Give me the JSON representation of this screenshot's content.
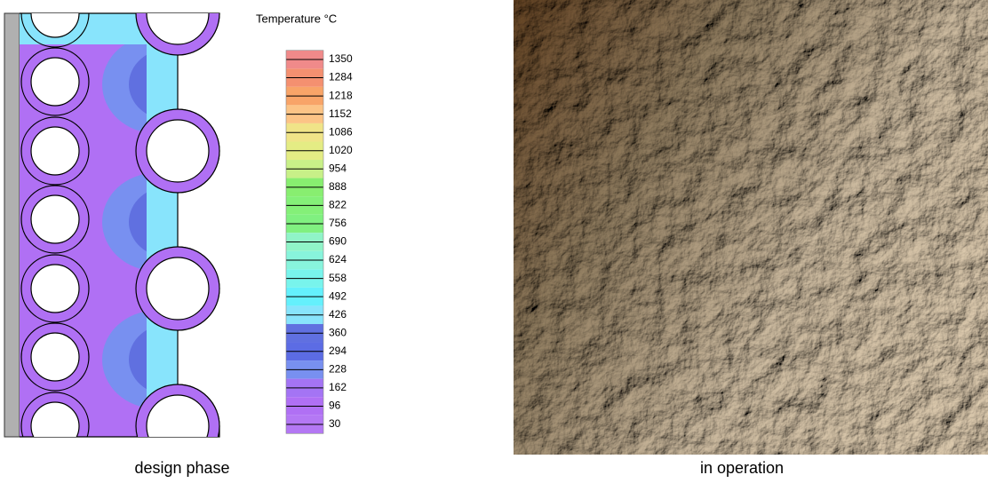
{
  "legend": {
    "title": "Temperature °C",
    "labels": [
      1350,
      1284,
      1218,
      1152,
      1086,
      1020,
      954,
      888,
      822,
      756,
      690,
      624,
      558,
      492,
      426,
      360,
      294,
      228,
      162,
      96,
      30
    ],
    "colors": [
      "#f08a8a",
      "#f49070",
      "#f8a468",
      "#fcc486",
      "#f0e488",
      "#e4ec84",
      "#c8f088",
      "#88ee70",
      "#84f078",
      "#80f080",
      "#90f4c8",
      "#88f4dc",
      "#78f4ec",
      "#64f0fc",
      "#88e4fc",
      "#6070e0",
      "#5c6ce4",
      "#7890f0",
      "#a474f4",
      "#b070f4",
      "#b478f4"
    ]
  },
  "captions": [
    "design phase",
    "in operation"
  ]
}
